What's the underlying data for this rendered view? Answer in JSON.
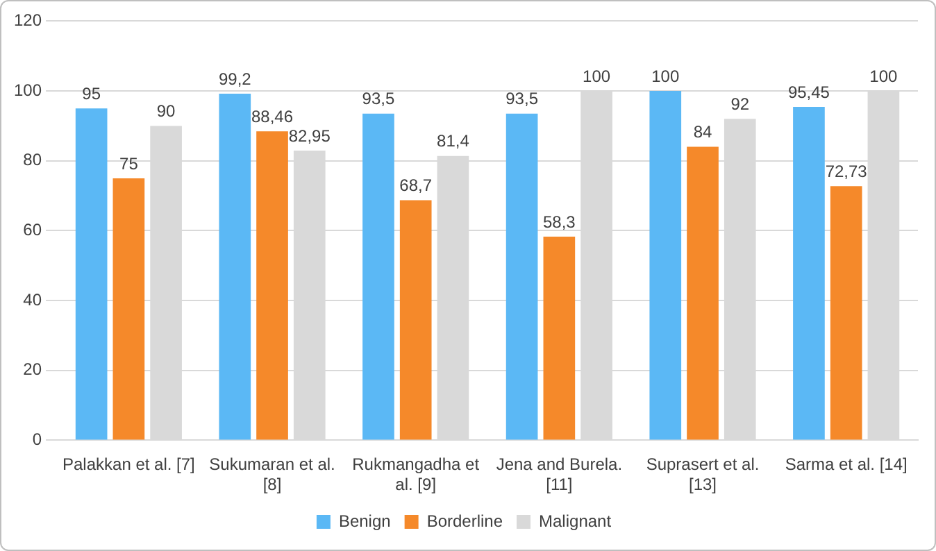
{
  "chart_data": {
    "type": "bar",
    "categories": [
      "Palakkan et al. [7]",
      "Sukumaran et al. [8]",
      "Rukmangadha et al. [9]",
      "Jena and Burela. [11]",
      "Suprasert et al. [13]",
      "Sarma et al. [14]"
    ],
    "series": [
      {
        "name": "Benign",
        "color": "#5bb8f5",
        "values": [
          95,
          99.2,
          93.5,
          93.5,
          100,
          95.45
        ],
        "value_labels": [
          "95",
          "99,2",
          "93,5",
          "93,5",
          "100",
          "95,45"
        ]
      },
      {
        "name": "Borderline",
        "color": "#f5892a",
        "values": [
          75,
          88.46,
          68.7,
          58.3,
          84,
          72.73
        ],
        "value_labels": [
          "75",
          "88,46",
          "68,7",
          "58,3",
          "84",
          "72,73"
        ]
      },
      {
        "name": "Malignant",
        "color": "#d9d9d9",
        "values": [
          90,
          82.95,
          81.4,
          100,
          92,
          100
        ],
        "value_labels": [
          "90",
          "82,95",
          "81,4",
          "100",
          "92",
          "100"
        ]
      }
    ],
    "ylim": [
      0,
      120
    ],
    "yticks": [
      0,
      20,
      40,
      60,
      80,
      100,
      120
    ],
    "grid": "y",
    "legend": "bottom"
  }
}
